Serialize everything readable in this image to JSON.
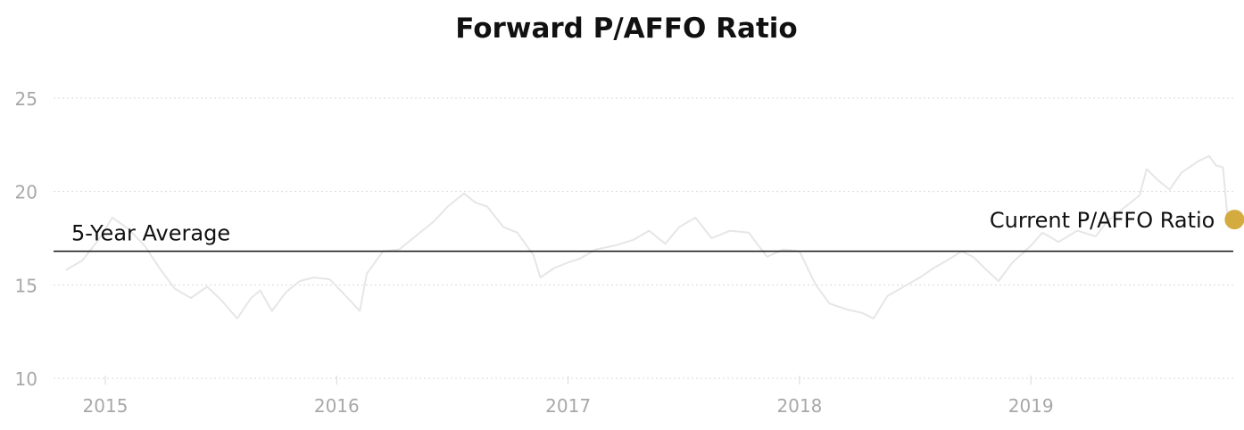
{
  "chart_data": {
    "type": "line",
    "title": "Forward P/AFFO Ratio",
    "xlabel": "",
    "ylabel": "",
    "xlim": [
      2014.82,
      2019.88
    ],
    "ylim": [
      10,
      25
    ],
    "y_ticks": [
      10,
      15,
      20,
      25
    ],
    "x_ticks": [
      {
        "value": 2015,
        "label": "2015"
      },
      {
        "value": 2016,
        "label": "2016"
      },
      {
        "value": 2017,
        "label": "2017"
      },
      {
        "value": 2018,
        "label": "2018"
      },
      {
        "value": 2019,
        "label": "2019"
      }
    ],
    "grid": "horizontal dotted",
    "colors": {
      "series": "#e6e6e6",
      "average": "#111111",
      "current": "#d4ab3f",
      "grid": "#d9d9d9",
      "tick": "#a8a8a8"
    },
    "series": [
      {
        "x": [
          2014.83,
          2014.9,
          2014.97,
          2015.03,
          2015.1,
          2015.17,
          2015.24,
          2015.3,
          2015.37,
          2015.44,
          2015.5,
          2015.57,
          2015.63,
          2015.67,
          2015.72,
          2015.78,
          2015.84,
          2015.9,
          2015.97,
          2016.04,
          2016.1,
          2016.13,
          2016.2,
          2016.27,
          2016.34,
          2016.42,
          2016.48,
          2016.55,
          2016.6,
          2016.65,
          2016.72,
          2016.78,
          2016.85,
          2016.88,
          2016.94,
          2017.0,
          2017.05,
          2017.12,
          2017.2,
          2017.28,
          2017.35,
          2017.42,
          2017.48,
          2017.55,
          2017.62,
          2017.7,
          2017.78,
          2017.86,
          2017.93,
          2018.0,
          2018.07,
          2018.13,
          2018.2,
          2018.27,
          2018.32,
          2018.38,
          2018.45,
          2018.52,
          2018.58,
          2018.65,
          2018.7,
          2018.75,
          2018.8,
          2018.86,
          2018.92,
          2019.0,
          2019.05,
          2019.12,
          2019.2,
          2019.28,
          2019.33,
          2019.4,
          2019.47,
          2019.5,
          2019.55,
          2019.6,
          2019.65,
          2019.72,
          2019.77,
          2019.8,
          2019.83,
          2019.85
        ],
        "values": [
          15.8,
          16.3,
          17.4,
          18.6,
          18.0,
          17.1,
          15.8,
          14.8,
          14.3,
          14.9,
          14.2,
          13.2,
          14.3,
          14.7,
          13.6,
          14.6,
          15.2,
          15.4,
          15.3,
          14.4,
          13.6,
          15.6,
          16.8,
          16.9,
          17.6,
          18.4,
          19.2,
          19.9,
          19.4,
          19.2,
          18.1,
          17.8,
          16.6,
          15.4,
          15.9,
          16.2,
          16.4,
          16.9,
          17.1,
          17.4,
          17.9,
          17.2,
          18.1,
          18.6,
          17.5,
          17.9,
          17.8,
          16.5,
          16.9,
          16.8,
          15.0,
          14.0,
          13.7,
          13.5,
          13.2,
          14.4,
          14.9,
          15.4,
          15.9,
          16.4,
          16.8,
          16.5,
          15.9,
          15.2,
          16.2,
          17.1,
          17.8,
          17.3,
          17.9,
          17.6,
          18.4,
          19.1,
          19.8,
          21.2,
          20.6,
          20.1,
          21.0,
          21.6,
          21.9,
          21.4,
          21.3,
          18.6
        ]
      }
    ],
    "average": {
      "label": "5-Year Average",
      "value": 16.8
    },
    "current": {
      "label": "Current P/AFFO Ratio",
      "x": 2019.88,
      "value": 18.5
    }
  }
}
